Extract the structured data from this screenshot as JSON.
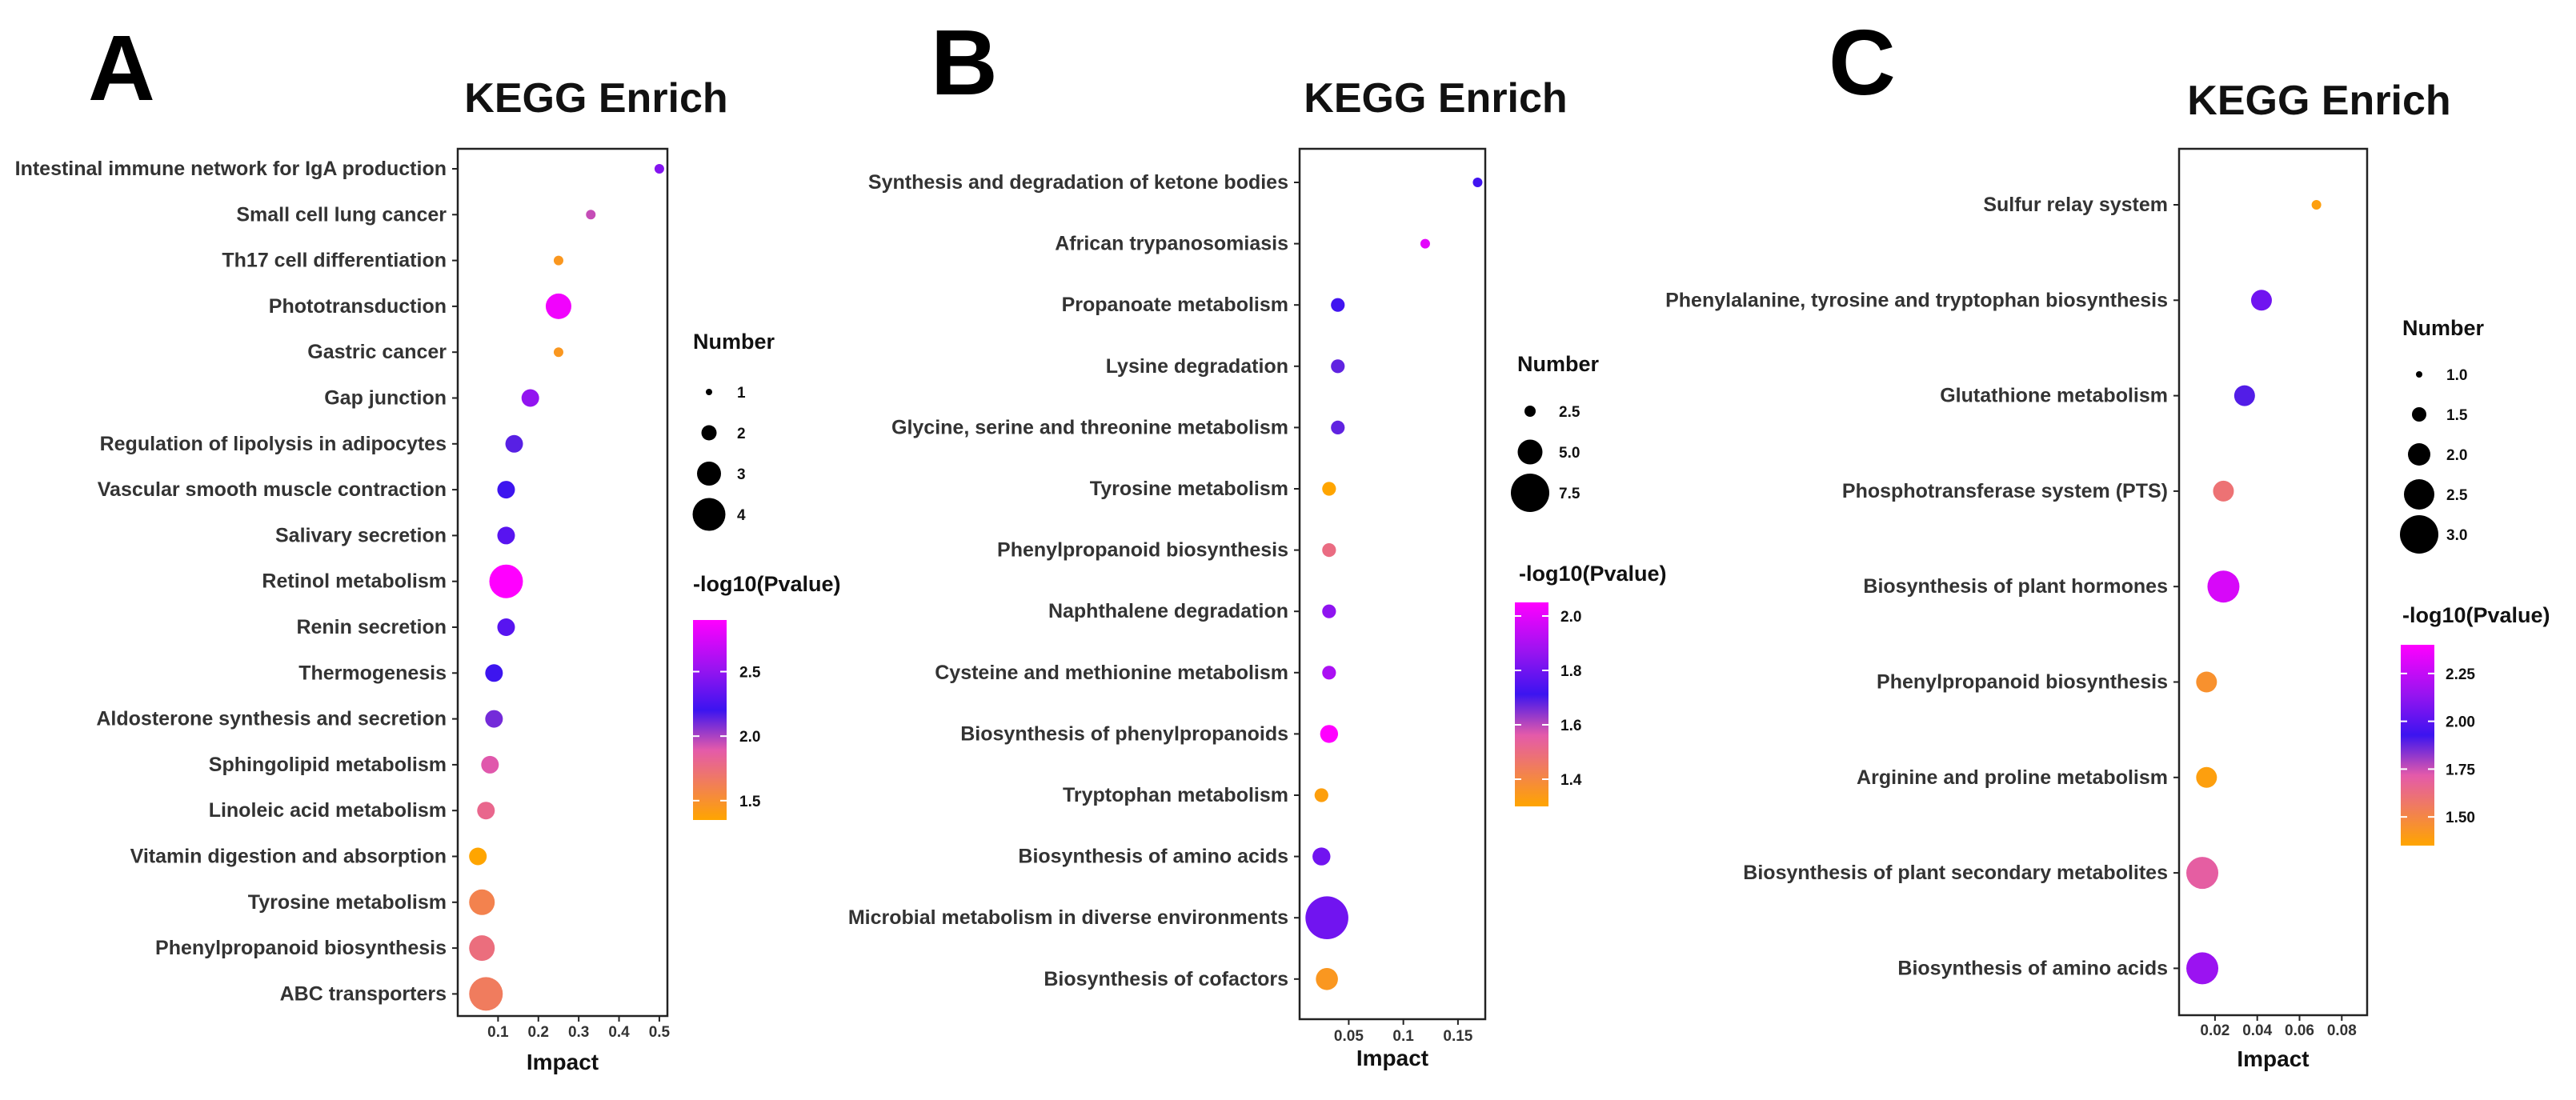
{
  "chart_data": [
    {
      "type": "scatter",
      "panel": "A",
      "title": "KEGG Enrich",
      "xlabel": "Impact",
      "xlim": [
        0.0,
        0.52
      ],
      "xticks": [
        0.1,
        0.2,
        0.3,
        0.4,
        0.5
      ],
      "categories": [
        "Intestinal immune network for IgA production",
        "Small cell lung cancer",
        "Th17 cell differentiation",
        "Phototransduction",
        "Gastric cancer",
        "Gap junction",
        "Regulation of lipolysis in adipocytes",
        "Vascular smooth muscle contraction",
        "Salivary secretion",
        "Retinol metabolism",
        "Renin secretion",
        "Thermogenesis",
        "Aldosterone synthesis and secretion",
        "Sphingolipid metabolism",
        "Linoleic acid metabolism",
        "Vitamin digestion and absorption",
        "Tyrosine metabolism",
        "Phenylpropanoid biosynthesis",
        "ABC transporters"
      ],
      "impact": [
        0.5,
        0.33,
        0.25,
        0.25,
        0.25,
        0.18,
        0.14,
        0.12,
        0.12,
        0.12,
        0.12,
        0.09,
        0.09,
        0.08,
        0.07,
        0.05,
        0.06,
        0.06,
        0.07
      ],
      "number": [
        1,
        1,
        1,
        3,
        1,
        2,
        2,
        2,
        2,
        4,
        2,
        2,
        2,
        2,
        2,
        2,
        3,
        3,
        4
      ],
      "neglog10p": [
        2.45,
        1.95,
        1.45,
        2.85,
        1.45,
        2.5,
        2.15,
        2.2,
        2.3,
        2.9,
        2.3,
        2.2,
        2.1,
        1.9,
        1.8,
        1.35,
        1.6,
        1.75,
        1.65
      ],
      "size_legend": {
        "title": "Number",
        "values": [
          1,
          2,
          3,
          4
        ],
        "labels": [
          "1",
          "2",
          "3",
          "4"
        ]
      },
      "color_legend": {
        "title": "-log10(Pvalue)",
        "min": 1.35,
        "max": 2.9,
        "ticks": [
          1.5,
          2.0,
          2.5
        ],
        "tick_labels": [
          "1.5",
          "2.0",
          "2.5"
        ]
      }
    },
    {
      "type": "scatter",
      "panel": "B",
      "title": "KEGG Enrich",
      "xlabel": "Impact",
      "xlim": [
        0.005,
        0.175
      ],
      "xticks": [
        0.05,
        0.1,
        0.15
      ],
      "categories": [
        "Synthesis and degradation of ketone bodies",
        "African trypanosomiasis",
        "Propanoate metabolism",
        "Lysine degradation",
        "Glycine, serine and threonine metabolism",
        "Tyrosine metabolism",
        "Phenylpropanoid biosynthesis",
        "Naphthalene degradation",
        "Cysteine and methionine metabolism",
        "Biosynthesis of phenylpropanoids",
        "Tryptophan metabolism",
        "Biosynthesis of amino acids",
        "Microbial metabolism in diverse environments",
        "Biosynthesis of cofactors"
      ],
      "impact": [
        0.168,
        0.12,
        0.04,
        0.04,
        0.04,
        0.032,
        0.032,
        0.032,
        0.032,
        0.032,
        0.025,
        0.025,
        0.03,
        0.03
      ],
      "number": [
        1,
        1,
        2,
        2,
        2,
        2,
        2,
        2,
        2,
        3,
        2,
        3,
        9,
        4
      ],
      "neglog10p": [
        1.72,
        2.0,
        1.72,
        1.68,
        1.68,
        1.3,
        1.5,
        1.85,
        1.9,
        2.05,
        1.32,
        1.8,
        1.8,
        1.35
      ],
      "size_legend": {
        "title": "Number",
        "values": [
          2.5,
          5.0,
          7.5
        ],
        "labels": [
          "2.5",
          "5.0",
          "7.5"
        ]
      },
      "color_legend": {
        "title": "-log10(Pvalue)",
        "min": 1.3,
        "max": 2.05,
        "ticks": [
          1.4,
          1.6,
          1.8,
          2.0
        ],
        "tick_labels": [
          "1.4",
          "1.6",
          "1.8",
          "2.0"
        ]
      }
    },
    {
      "type": "scatter",
      "panel": "C",
      "title": "KEGG Enrich",
      "xlabel": "Impact",
      "xlim": [
        0.003,
        0.092
      ],
      "xticks": [
        0.02,
        0.04,
        0.06,
        0.08
      ],
      "categories": [
        "Sulfur relay system",
        "Phenylalanine, tyrosine and tryptophan biosynthesis",
        "Glutathione metabolism",
        "Phosphotransferase system (PTS)",
        "Biosynthesis of plant hormones",
        "Phenylpropanoid biosynthesis",
        "Arginine and proline metabolism",
        "Biosynthesis of plant secondary metabolites",
        "Biosynthesis of amino acids"
      ],
      "impact": [
        0.068,
        0.042,
        0.034,
        0.024,
        0.024,
        0.016,
        0.016,
        0.014,
        0.014
      ],
      "number": [
        1,
        2,
        2,
        2,
        3,
        2,
        2,
        3,
        3
      ],
      "neglog10p": [
        1.38,
        2.05,
        1.9,
        1.6,
        2.3,
        1.45,
        1.38,
        1.7,
        2.15
      ],
      "size_legend": {
        "title": "Number",
        "values": [
          1.0,
          1.5,
          2.0,
          2.5,
          3.0
        ],
        "labels": [
          "1.0",
          "1.5",
          "2.0",
          "2.5",
          "3.0"
        ]
      },
      "color_legend": {
        "title": "-log10(Pvalue)",
        "min": 1.35,
        "max": 2.4,
        "ticks": [
          1.5,
          1.75,
          2.0,
          2.25
        ],
        "tick_labels": [
          "1.50",
          "1.75",
          "2.00",
          "2.25"
        ]
      }
    }
  ]
}
